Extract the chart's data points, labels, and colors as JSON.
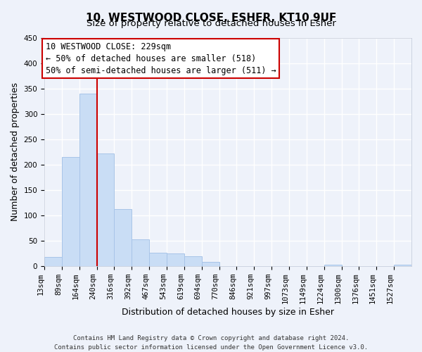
{
  "title": "10, WESTWOOD CLOSE, ESHER, KT10 9UF",
  "subtitle": "Size of property relative to detached houses in Esher",
  "xlabel": "Distribution of detached houses by size in Esher",
  "ylabel": "Number of detached properties",
  "bin_labels": [
    "13sqm",
    "89sqm",
    "164sqm",
    "240sqm",
    "316sqm",
    "392sqm",
    "467sqm",
    "543sqm",
    "619sqm",
    "694sqm",
    "770sqm",
    "846sqm",
    "921sqm",
    "997sqm",
    "1073sqm",
    "1149sqm",
    "1224sqm",
    "1300sqm",
    "1376sqm",
    "1451sqm",
    "1527sqm"
  ],
  "bar_values": [
    18,
    215,
    340,
    222,
    113,
    53,
    26,
    25,
    20,
    8,
    0,
    0,
    0,
    0,
    0,
    0,
    3,
    0,
    0,
    0,
    3
  ],
  "bar_color": "#c9ddf5",
  "bar_edgecolor": "#a8c4e8",
  "vline_x_bin": 2,
  "bin_edges_values": [
    13,
    89,
    164,
    240,
    316,
    392,
    467,
    543,
    619,
    694,
    770,
    846,
    921,
    997,
    1073,
    1149,
    1224,
    1300,
    1376,
    1451,
    1527,
    1603
  ],
  "ylim": [
    0,
    450
  ],
  "annotation_title": "10 WESTWOOD CLOSE: 229sqm",
  "annotation_line1": "← 50% of detached houses are smaller (518)",
  "annotation_line2": "50% of semi-detached houses are larger (511) →",
  "annotation_box_color": "#ffffff",
  "annotation_box_edgecolor": "#cc0000",
  "vline_color": "#cc0000",
  "footer1": "Contains HM Land Registry data © Crown copyright and database right 2024.",
  "footer2": "Contains public sector information licensed under the Open Government Licence v3.0.",
  "background_color": "#eef2fa",
  "grid_color": "#ffffff",
  "title_fontsize": 11,
  "subtitle_fontsize": 9.5,
  "tick_fontsize": 7.5,
  "ylabel_fontsize": 9,
  "xlabel_fontsize": 9,
  "annotation_fontsize": 8.5,
  "footer_fontsize": 6.5
}
